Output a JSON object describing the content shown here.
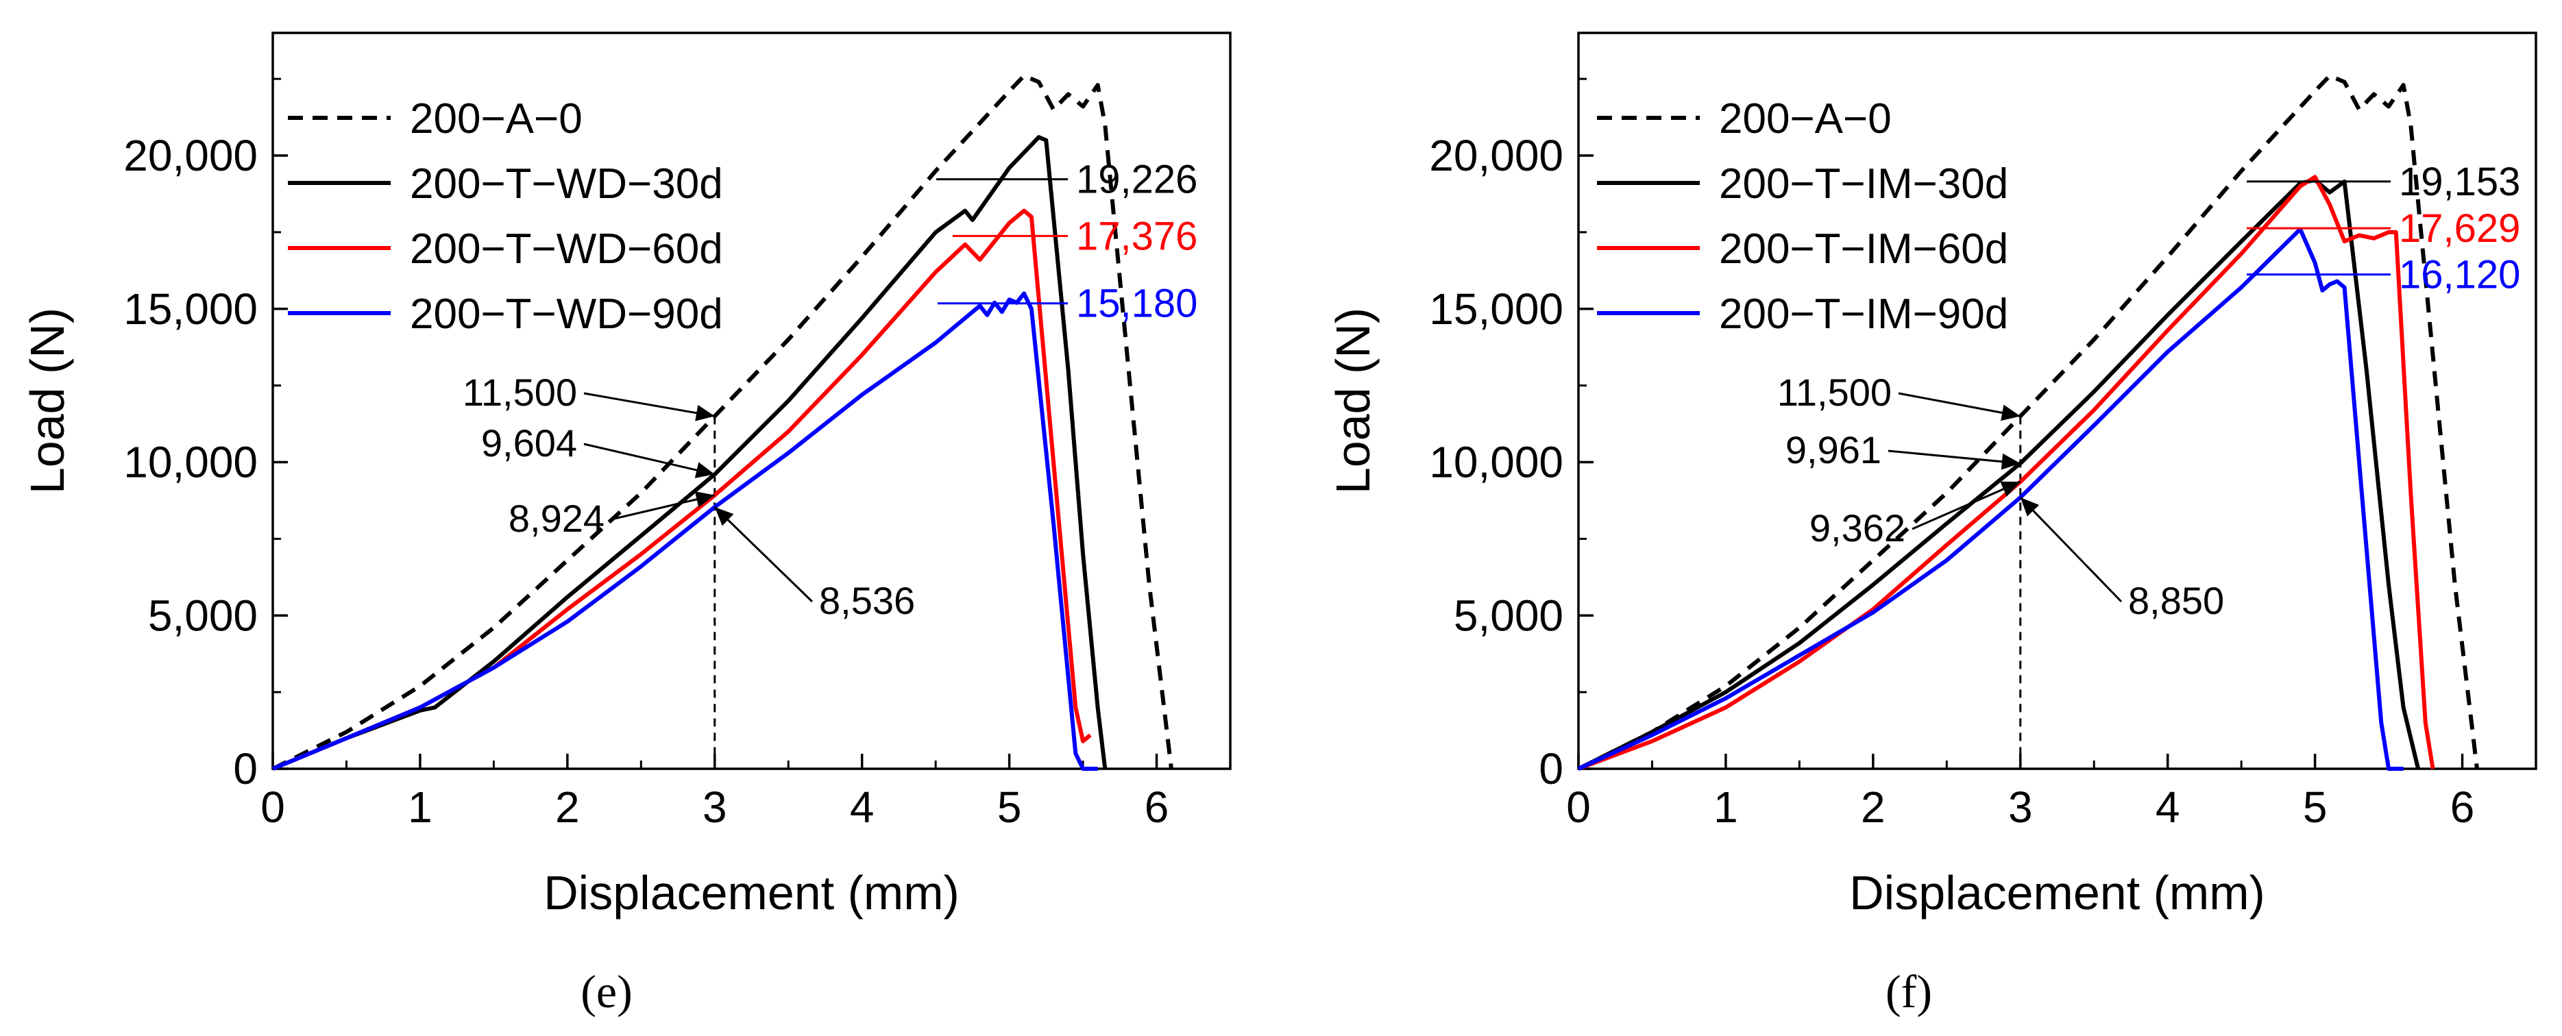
{
  "chart_data": [
    {
      "type": "line",
      "panel_label": "(e)",
      "xlabel": "Displacement (mm)",
      "ylabel": "Load (N)",
      "xlim": [
        0,
        6.5
      ],
      "ylim": [
        0,
        24000
      ],
      "xticks": [
        0,
        1,
        2,
        3,
        4,
        5,
        6
      ],
      "yticks": [
        0,
        5000,
        10000,
        15000,
        20000
      ],
      "xtick_labels": [
        "0",
        "1",
        "2",
        "3",
        "4",
        "5",
        "6"
      ],
      "ytick_labels": [
        "0",
        "5,000",
        "10,000",
        "15,000",
        "20,000"
      ],
      "grid": false,
      "legend_position": "top-left",
      "reference_line_x": 3,
      "series": [
        {
          "name": "200−A−0",
          "color": "#000000",
          "style": "dashed",
          "x": [
            0,
            0.5,
            1,
            1.5,
            2,
            2.5,
            3,
            3.5,
            4,
            4.5,
            5,
            5.1,
            5.2,
            5.3,
            5.4,
            5.5,
            5.6,
            5.65,
            5.75,
            5.85,
            5.95,
            6.05,
            6.1
          ],
          "y": [
            0,
            1200,
            2700,
            4600,
            6800,
            9000,
            11500,
            14000,
            16700,
            19500,
            22100,
            22600,
            22400,
            21500,
            22000,
            21600,
            22300,
            21000,
            16000,
            11000,
            6000,
            2000,
            0
          ]
        },
        {
          "name": "200−T−WD−30d",
          "color": "#000000",
          "style": "solid",
          "x": [
            0,
            0.5,
            1,
            1.1,
            1.5,
            2,
            2.5,
            3,
            3.5,
            4,
            4.5,
            4.7,
            4.75,
            5,
            5.2,
            5.25,
            5.4,
            5.5,
            5.6,
            5.65
          ],
          "y": [
            0,
            1000,
            1900,
            2000,
            3500,
            5600,
            7600,
            9604,
            12000,
            14700,
            17500,
            18200,
            17900,
            19600,
            20600,
            20500,
            13000,
            7000,
            2000,
            0
          ]
        },
        {
          "name": "200−T−WD−60d",
          "color": "#ff0000",
          "style": "solid",
          "x": [
            0,
            0.5,
            1,
            1.5,
            2,
            2.5,
            3,
            3.5,
            4,
            4.5,
            4.7,
            4.8,
            5,
            5.1,
            5.15,
            5.3,
            5.45,
            5.5,
            5.55
          ],
          "y": [
            0,
            1000,
            2000,
            3300,
            5200,
            7000,
            8924,
            11000,
            13500,
            16200,
            17100,
            16600,
            17800,
            18200,
            18000,
            10000,
            2000,
            900,
            1100
          ]
        },
        {
          "name": "200−T−WD−90d",
          "color": "#0000ff",
          "style": "solid",
          "x": [
            0,
            0.5,
            1,
            1.5,
            2,
            2.5,
            3,
            3.5,
            4,
            4.5,
            4.8,
            4.85,
            4.9,
            4.95,
            5,
            5.05,
            5.1,
            5.15,
            5.3,
            5.45,
            5.5,
            5.6
          ],
          "y": [
            0,
            1000,
            2000,
            3300,
            4800,
            6600,
            8536,
            10300,
            12200,
            13900,
            15100,
            14800,
            15200,
            14900,
            15300,
            15200,
            15500,
            15000,
            8000,
            500,
            0,
            0
          ]
        }
      ],
      "annotations": [
        {
          "text": "11,500",
          "color": "#000000",
          "x": 3,
          "y": 11500
        },
        {
          "text": "9,604",
          "color": "#000000",
          "x": 3,
          "y": 9604
        },
        {
          "text": "8,924",
          "color": "#000000",
          "x": 3,
          "y": 8924
        },
        {
          "text": "8,536",
          "color": "#000000",
          "x": 3,
          "y": 8536
        },
        {
          "text": "19,226",
          "color": "#000000",
          "y": 19226
        },
        {
          "text": "17,376",
          "color": "#ff0000",
          "y": 17376
        },
        {
          "text": "15,180",
          "color": "#0000ff",
          "y": 15180
        }
      ]
    },
    {
      "type": "line",
      "panel_label": "(f)",
      "xlabel": "Displacement (mm)",
      "ylabel": "Load (N)",
      "xlim": [
        0,
        6.5
      ],
      "ylim": [
        0,
        24000
      ],
      "xticks": [
        0,
        1,
        2,
        3,
        4,
        5,
        6
      ],
      "yticks": [
        0,
        5000,
        10000,
        15000,
        20000
      ],
      "xtick_labels": [
        "0",
        "1",
        "2",
        "3",
        "4",
        "5",
        "6"
      ],
      "ytick_labels": [
        "0",
        "5,000",
        "10,000",
        "15,000",
        "20,000"
      ],
      "grid": false,
      "legend_position": "top-left",
      "reference_line_x": 3,
      "series": [
        {
          "name": "200−A−0",
          "color": "#000000",
          "style": "dashed",
          "x": [
            0,
            0.5,
            1,
            1.5,
            2,
            2.5,
            3,
            3.5,
            4,
            4.5,
            5,
            5.1,
            5.2,
            5.3,
            5.4,
            5.5,
            5.6,
            5.65,
            5.75,
            5.85,
            5.95,
            6.05,
            6.1
          ],
          "y": [
            0,
            1200,
            2700,
            4600,
            6800,
            9000,
            11500,
            14000,
            16700,
            19500,
            22100,
            22600,
            22400,
            21500,
            22000,
            21600,
            22300,
            21000,
            16000,
            11000,
            6000,
            2000,
            0
          ]
        },
        {
          "name": "200−T−IM−30d",
          "color": "#000000",
          "style": "solid",
          "x": [
            0,
            0.5,
            1,
            1.5,
            2,
            2.5,
            3,
            3.5,
            4,
            4.5,
            4.9,
            5,
            5.1,
            5.2,
            5.35,
            5.5,
            5.6,
            5.7
          ],
          "y": [
            0,
            1200,
            2500,
            4100,
            6000,
            8000,
            9961,
            12300,
            14800,
            17200,
            19100,
            19200,
            18800,
            19150,
            13000,
            6000,
            2000,
            0
          ]
        },
        {
          "name": "200−T−IM−60d",
          "color": "#ff0000",
          "style": "solid",
          "x": [
            0,
            0.5,
            1,
            1.5,
            2,
            2.5,
            3,
            3.5,
            4,
            4.5,
            4.9,
            5,
            5.1,
            5.2,
            5.3,
            5.4,
            5.5,
            5.55,
            5.65,
            5.75,
            5.8
          ],
          "y": [
            0,
            900,
            2000,
            3500,
            5200,
            7300,
            9362,
            11700,
            14300,
            16800,
            19000,
            19300,
            18400,
            17200,
            17400,
            17300,
            17500,
            17500,
            9000,
            1500,
            0
          ]
        },
        {
          "name": "200−T−IM−90d",
          "color": "#0000ff",
          "style": "solid",
          "x": [
            0,
            0.5,
            1,
            1.5,
            2,
            2.5,
            3,
            3.5,
            4,
            4.5,
            4.9,
            5,
            5.05,
            5.1,
            5.15,
            5.2,
            5.3,
            5.45,
            5.5,
            5.6
          ],
          "y": [
            0,
            1100,
            2300,
            3700,
            5100,
            6800,
            8850,
            11200,
            13600,
            15700,
            17600,
            16500,
            15600,
            15800,
            15900,
            15700,
            10000,
            1500,
            0,
            0
          ]
        }
      ],
      "annotations": [
        {
          "text": "11,500",
          "color": "#000000",
          "x": 3,
          "y": 11500
        },
        {
          "text": "9,961",
          "color": "#000000",
          "x": 3,
          "y": 9961
        },
        {
          "text": "9,362",
          "color": "#000000",
          "x": 3,
          "y": 9362
        },
        {
          "text": "8,850",
          "color": "#000000",
          "x": 3,
          "y": 8850
        },
        {
          "text": "19,153",
          "color": "#000000",
          "y": 19153
        },
        {
          "text": "17,629",
          "color": "#ff0000",
          "y": 17629
        },
        {
          "text": "16,120",
          "color": "#0000ff",
          "y": 16120
        }
      ]
    }
  ]
}
